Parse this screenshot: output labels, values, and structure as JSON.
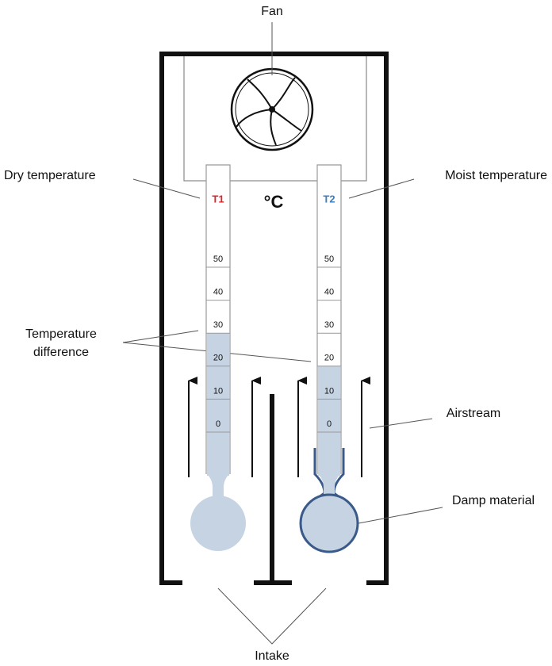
{
  "labels": {
    "fan": "Fan",
    "dry": "Dry temperature",
    "moist": "Moist temperature",
    "difference": [
      "Temperature",
      "difference"
    ],
    "airstream": "Airstream",
    "damp": "Damp material",
    "intake": "Intake",
    "unit": "°C"
  },
  "thermometers": [
    {
      "name": "T1",
      "color": "#d9262b",
      "reading": 30
    },
    {
      "name": "T2",
      "color": "#3d7ebf",
      "reading": 20
    }
  ],
  "scale": {
    "ticks": [
      0,
      10,
      20,
      30,
      40,
      50
    ]
  }
}
